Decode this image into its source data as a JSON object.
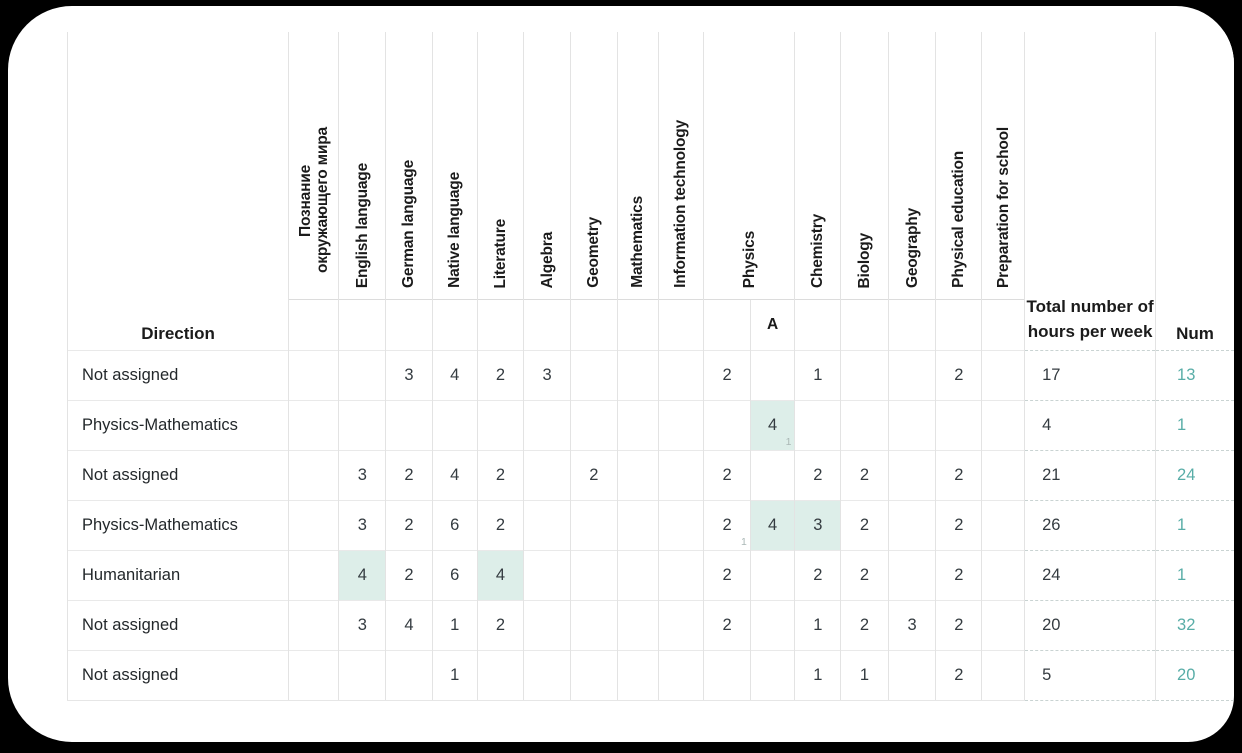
{
  "colors": {
    "background": "#000000",
    "surface": "#ffffff",
    "accent_teal": "#58ada7",
    "highlight_mint": "#ddeee9",
    "footnote_gray": "#abb8b6"
  },
  "table": {
    "direction_label": "Direction",
    "total_label": "Total number of hours per week",
    "num_label": "Num",
    "physics_sub_label": "A",
    "subjects": [
      "Познание окружающего мира",
      "English language",
      "German language",
      "Native language",
      "Literature",
      "Algebra",
      "Geometry",
      "Mathematics",
      "Information technology",
      "Physics",
      "Chemistry",
      "Biology",
      "Geography",
      "Physical education",
      "Preparation for school"
    ],
    "column_keys": [
      "pozn",
      "english",
      "german",
      "native",
      "literature",
      "algebra",
      "geometry",
      "mathematics",
      "it",
      "physics",
      "physics_a",
      "chemistry",
      "biology",
      "geography",
      "pe",
      "prep"
    ],
    "rows": [
      {
        "direction": "Not assigned",
        "cells": {
          "german": {
            "v": "3"
          },
          "native": {
            "v": "4"
          },
          "literature": {
            "v": "2"
          },
          "algebra": {
            "v": "3"
          },
          "physics": {
            "v": "2"
          },
          "chemistry": {
            "v": "1"
          },
          "pe": {
            "v": "2"
          }
        },
        "total": "17",
        "num": "13"
      },
      {
        "direction": "Physics-Mathematics",
        "cells": {
          "physics_a": {
            "v": "4",
            "hl": true,
            "sub": "1"
          }
        },
        "total": "4",
        "num": "1"
      },
      {
        "direction": "Not assigned",
        "cells": {
          "english": {
            "v": "3"
          },
          "german": {
            "v": "2"
          },
          "native": {
            "v": "4"
          },
          "literature": {
            "v": "2"
          },
          "geometry": {
            "v": "2"
          },
          "physics": {
            "v": "2"
          },
          "chemistry": {
            "v": "2"
          },
          "biology": {
            "v": "2"
          },
          "pe": {
            "v": "2"
          }
        },
        "total": "21",
        "num": "24"
      },
      {
        "direction": "Physics-Mathematics",
        "cells": {
          "english": {
            "v": "3"
          },
          "german": {
            "v": "2"
          },
          "native": {
            "v": "6"
          },
          "literature": {
            "v": "2"
          },
          "physics": {
            "v": "2",
            "sub": "1"
          },
          "physics_a": {
            "v": "4",
            "hl": true
          },
          "chemistry": {
            "v": "3",
            "hl": true
          },
          "biology": {
            "v": "2"
          },
          "pe": {
            "v": "2"
          }
        },
        "total": "26",
        "num": "1"
      },
      {
        "direction": "Humanitarian",
        "cells": {
          "english": {
            "v": "4",
            "hl": true
          },
          "german": {
            "v": "2"
          },
          "native": {
            "v": "6"
          },
          "literature": {
            "v": "4",
            "hl": true
          },
          "physics": {
            "v": "2"
          },
          "chemistry": {
            "v": "2"
          },
          "biology": {
            "v": "2"
          },
          "pe": {
            "v": "2"
          }
        },
        "total": "24",
        "num": "1"
      },
      {
        "direction": "Not assigned",
        "cells": {
          "english": {
            "v": "3"
          },
          "german": {
            "v": "4"
          },
          "native": {
            "v": "1"
          },
          "literature": {
            "v": "2"
          },
          "physics": {
            "v": "2"
          },
          "chemistry": {
            "v": "1"
          },
          "biology": {
            "v": "2"
          },
          "geography": {
            "v": "3"
          },
          "pe": {
            "v": "2"
          }
        },
        "total": "20",
        "num": "32"
      },
      {
        "direction": "Not assigned",
        "cells": {
          "native": {
            "v": "1"
          },
          "chemistry": {
            "v": "1"
          },
          "biology": {
            "v": "1"
          },
          "pe": {
            "v": "2"
          }
        },
        "total": "5",
        "num": "20"
      }
    ]
  }
}
